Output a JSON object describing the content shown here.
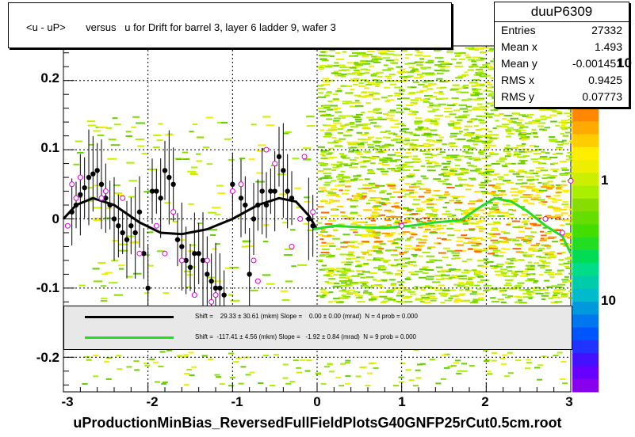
{
  "chart_data": {
    "type": "scatter",
    "title": "<u - uP>       versus   u for Drift for barrel 3, layer 6 ladder 9, wafer 3",
    "xlim": [
      -3,
      3
    ],
    "ylim": [
      -0.25,
      0.25
    ],
    "x_ticks": [
      "-3",
      "-2",
      "-1",
      "0",
      "1",
      "2",
      "3"
    ],
    "y_ticks": [
      "0.2",
      "0.1",
      "0",
      "-0.1",
      "-0.2"
    ],
    "z_ticks": [
      "10",
      "1",
      "10"
    ],
    "stats": {
      "name": "duuP6309",
      "rows": [
        {
          "key": "Entries",
          "value": "27332"
        },
        {
          "key": "Mean x",
          "value": "1.493"
        },
        {
          "key": "Mean y",
          "value": "-0.001451"
        },
        {
          "key": "RMS x",
          "value": "0.9425"
        },
        {
          "key": "RMS y",
          "value": "0.07773"
        }
      ]
    },
    "fits": [
      {
        "color": "#000000",
        "text": "Shift =    29.33 ± 30.61 (mkm) Slope =    0.00 ± 0.00 (mrad)  N = 4 prob = 0.000"
      },
      {
        "color": "#22dd22",
        "text": "Shift =  -117.41 ± 4.56 (mkm) Slope =   -1.92 ± 0.84 (mrad)  N = 9 prob = 0.000"
      }
    ],
    "black_points": [
      [
        -2.9,
        0.01
      ],
      [
        -2.85,
        0.02
      ],
      [
        -2.8,
        0.035
      ],
      [
        -2.75,
        0.045
      ],
      [
        -2.7,
        0.06
      ],
      [
        -2.65,
        0.065
      ],
      [
        -2.6,
        0.07
      ],
      [
        -2.55,
        0.05
      ],
      [
        -2.5,
        0.03
      ],
      [
        -2.45,
        0.02
      ],
      [
        -2.4,
        0.0
      ],
      [
        -2.35,
        -0.01
      ],
      [
        -2.3,
        -0.02
      ],
      [
        -2.25,
        -0.03
      ],
      [
        -2.2,
        -0.01
      ],
      [
        -2.15,
        -0.02
      ],
      [
        -2.1,
        0.01
      ],
      [
        -2.05,
        -0.05
      ],
      [
        -2.0,
        -0.1
      ],
      [
        -1.95,
        0.04
      ],
      [
        -1.9,
        0.04
      ],
      [
        -1.85,
        0.03
      ],
      [
        -1.8,
        0.07
      ],
      [
        -1.75,
        0.06
      ],
      [
        -1.7,
        0.05
      ],
      [
        -1.65,
        -0.03
      ],
      [
        -1.6,
        -0.04
      ],
      [
        -1.55,
        -0.06
      ],
      [
        -1.5,
        -0.07
      ],
      [
        -1.45,
        -0.05
      ],
      [
        -1.4,
        -0.05
      ],
      [
        -1.35,
        -0.06
      ],
      [
        -1.3,
        -0.08
      ],
      [
        -1.25,
        -0.09
      ],
      [
        -1.2,
        -0.1
      ],
      [
        -1.15,
        -0.1
      ],
      [
        -1.1,
        -0.11
      ],
      [
        -1.0,
        0.05
      ],
      [
        -0.9,
        0.03
      ],
      [
        -0.85,
        0.02
      ],
      [
        -0.8,
        -0.08
      ],
      [
        -0.75,
        0.0
      ],
      [
        -0.7,
        0.02
      ],
      [
        -0.65,
        0.04
      ],
      [
        -0.6,
        0.02
      ],
      [
        -0.55,
        0.04
      ],
      [
        -0.5,
        0.04
      ],
      [
        -0.45,
        0.09
      ],
      [
        -0.4,
        0.07
      ],
      [
        -0.35,
        0.04
      ],
      [
        -0.3,
        0.03
      ],
      [
        -0.1,
        0.0
      ],
      [
        -0.05,
        -0.01
      ]
    ],
    "magenta_points": [
      [
        -2.95,
        -0.01
      ],
      [
        -2.9,
        0.05
      ],
      [
        -2.85,
        0.03
      ],
      [
        -2.8,
        0.06
      ],
      [
        -2.55,
        0.03
      ],
      [
        -2.5,
        0.04
      ],
      [
        -2.3,
        0.03
      ],
      [
        -2.1,
        -0.05
      ],
      [
        -1.9,
        -0.01
      ],
      [
        -1.8,
        -0.05
      ],
      [
        -1.7,
        0.01
      ],
      [
        -1.6,
        -0.06
      ],
      [
        -1.45,
        -0.11
      ],
      [
        -1.3,
        -0.06
      ],
      [
        -1.25,
        -0.12
      ],
      [
        -1.2,
        -0.11
      ],
      [
        -1.0,
        0.04
      ],
      [
        -0.9,
        0.05
      ],
      [
        -0.75,
        -0.06
      ],
      [
        -0.7,
        -0.09
      ],
      [
        -0.6,
        0.1
      ],
      [
        -0.5,
        0.08
      ],
      [
        -0.3,
        -0.04
      ],
      [
        -0.2,
        0.0
      ],
      [
        -0.15,
        0.09
      ],
      [
        -0.05,
        0.01
      ],
      [
        3.0,
        0.055
      ],
      [
        2.9,
        -0.02
      ],
      [
        2.7,
        0.0
      ],
      [
        1.0,
        -0.01
      ]
    ],
    "black_curve": [
      [
        -3,
        0.0
      ],
      [
        -2.85,
        0.02
      ],
      [
        -2.65,
        0.03
      ],
      [
        -2.4,
        0.02
      ],
      [
        -2.1,
        -0.005
      ],
      [
        -1.85,
        -0.02
      ],
      [
        -1.6,
        -0.022
      ],
      [
        -1.3,
        -0.015
      ],
      [
        -1.0,
        0.0
      ],
      [
        -0.7,
        0.02
      ],
      [
        -0.45,
        0.03
      ],
      [
        -0.25,
        0.025
      ],
      [
        -0.1,
        0.005
      ],
      [
        0.0,
        -0.015
      ]
    ],
    "green_curve": [
      [
        -0.05,
        -0.015
      ],
      [
        0.2,
        -0.01
      ],
      [
        0.5,
        -0.012
      ],
      [
        0.8,
        -0.013
      ],
      [
        1.1,
        -0.01
      ],
      [
        1.4,
        -0.005
      ],
      [
        1.7,
        -0.002
      ],
      [
        1.9,
        0.015
      ],
      [
        2.1,
        0.03
      ],
      [
        2.3,
        0.025
      ],
      [
        2.5,
        0.01
      ],
      [
        2.7,
        -0.01
      ],
      [
        2.9,
        -0.025
      ],
      [
        3.0,
        -0.05
      ]
    ]
  },
  "footer": "uProductionMinBias_ReversedFullFieldPlotsG40GNFP25rCut0.5cm.root"
}
